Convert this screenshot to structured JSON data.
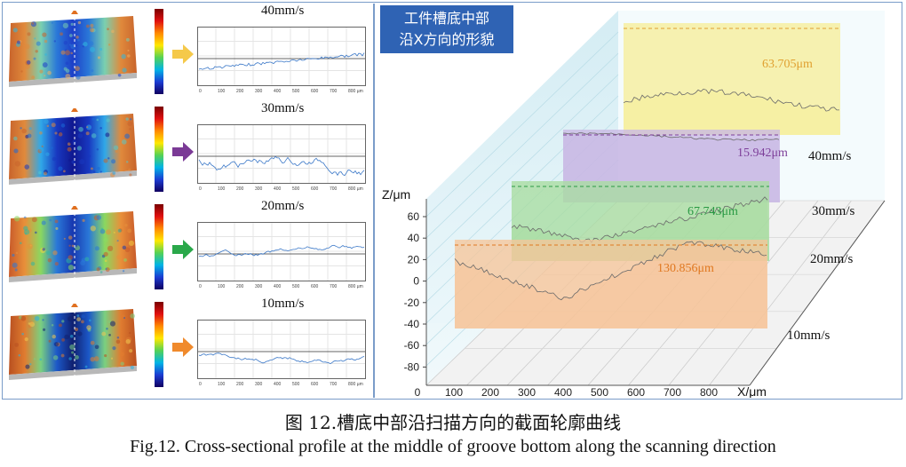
{
  "figure": {
    "left_rows": [
      {
        "speed": "40mm/s",
        "arrow_color": "#f5c94a",
        "scheme": "orange-top"
      },
      {
        "speed": "30mm/s",
        "arrow_color": "#7b3a96",
        "scheme": "blue-mid"
      },
      {
        "speed": "20mm/s",
        "arrow_color": "#2aa84a",
        "scheme": "green-rough"
      },
      {
        "speed": "10mm/s",
        "arrow_color": "#f08a2c",
        "scheme": "blue-deep"
      }
    ],
    "mini_x_ticks": [
      "0",
      "100",
      "200",
      "300",
      "400",
      "500",
      "600",
      "700",
      "800 µm"
    ],
    "title_lines": [
      "工件槽底中部",
      "沿X方向的形貌"
    ],
    "z_axis_label": "Z/μm",
    "x_axis_label": "X/μm",
    "z_ticks": [
      "60",
      "40",
      "20",
      "0",
      "-20",
      "-40",
      "-60",
      "-80"
    ],
    "x_ticks": [
      "0",
      "100",
      "200",
      "300",
      "400",
      "500",
      "600",
      "700",
      "800"
    ],
    "layers": [
      {
        "speed": "40mm/s",
        "color": "#f6ee9a",
        "annotation": "63.705μm",
        "ann_color": "#e0a030"
      },
      {
        "speed": "30mm/s",
        "color": "#c9b8e4",
        "annotation": "15.942μm",
        "ann_color": "#7d3f9a"
      },
      {
        "speed": "20mm/s",
        "color": "#a8dca0",
        "annotation": "67.743μm",
        "ann_color": "#2a9a44"
      },
      {
        "speed": "10mm/s",
        "color": "#f6c59a",
        "annotation": "130.856μm",
        "ann_color": "#e07820"
      }
    ]
  },
  "caption": {
    "chinese": "图 12.槽底中部沿扫描方向的截面轮廓曲线",
    "english": "Fig.12. Cross-sectional profile at the middle of groove bottom along the scanning direction"
  }
}
